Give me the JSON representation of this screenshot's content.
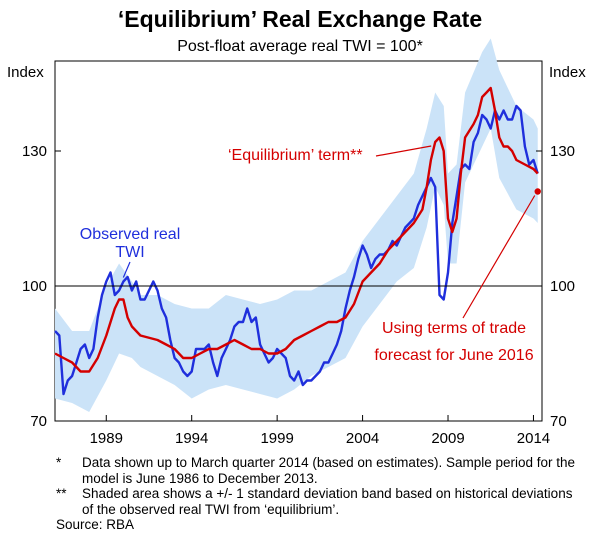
{
  "chart_data": {
    "type": "line",
    "title": "‘Equilibrium’ Real Exchange Rate",
    "subtitle": "Post-float average real TWI = 100*",
    "ylabel_left": "Index",
    "ylabel_right": "Index",
    "ylim": [
      70,
      150
    ],
    "yticks": [
      70,
      100,
      130
    ],
    "xlim": [
      1986.0,
      2014.5
    ],
    "xticks": [
      1989,
      1994,
      1999,
      2004,
      2009,
      2014
    ],
    "series": [
      {
        "name": "Observed real TWI",
        "color": "#1f2fdc",
        "points": [
          [
            1986.0,
            90
          ],
          [
            1986.25,
            89
          ],
          [
            1986.5,
            76
          ],
          [
            1986.75,
            79
          ],
          [
            1987.0,
            80
          ],
          [
            1987.25,
            83
          ],
          [
            1987.5,
            86
          ],
          [
            1987.75,
            87
          ],
          [
            1988.0,
            84
          ],
          [
            1988.25,
            86
          ],
          [
            1988.5,
            93
          ],
          [
            1988.75,
            98
          ],
          [
            1989.0,
            101
          ],
          [
            1989.25,
            103
          ],
          [
            1989.5,
            98
          ],
          [
            1989.75,
            99
          ],
          [
            1990.0,
            101
          ],
          [
            1990.25,
            102
          ],
          [
            1990.5,
            99
          ],
          [
            1990.75,
            101
          ],
          [
            1991.0,
            97
          ],
          [
            1991.25,
            97
          ],
          [
            1991.5,
            99
          ],
          [
            1991.75,
            101
          ],
          [
            1992.0,
            99
          ],
          [
            1992.25,
            95
          ],
          [
            1992.5,
            93
          ],
          [
            1992.75,
            88
          ],
          [
            1993.0,
            84
          ],
          [
            1993.25,
            83
          ],
          [
            1993.5,
            81
          ],
          [
            1993.75,
            80
          ],
          [
            1994.0,
            81
          ],
          [
            1994.25,
            86
          ],
          [
            1994.5,
            86
          ],
          [
            1994.75,
            86
          ],
          [
            1995.0,
            87
          ],
          [
            1995.25,
            83
          ],
          [
            1995.5,
            80
          ],
          [
            1995.75,
            84
          ],
          [
            1996.0,
            86
          ],
          [
            1996.25,
            88
          ],
          [
            1996.5,
            91
          ],
          [
            1996.75,
            92
          ],
          [
            1997.0,
            92
          ],
          [
            1997.25,
            95
          ],
          [
            1997.5,
            92
          ],
          [
            1997.75,
            93
          ],
          [
            1998.0,
            87
          ],
          [
            1998.25,
            85
          ],
          [
            1998.5,
            83
          ],
          [
            1998.75,
            84
          ],
          [
            1999.0,
            86
          ],
          [
            1999.25,
            85
          ],
          [
            1999.5,
            84
          ],
          [
            1999.75,
            80
          ],
          [
            2000.0,
            79
          ],
          [
            2000.25,
            81
          ],
          [
            2000.5,
            78
          ],
          [
            2000.75,
            79
          ],
          [
            2001.0,
            79
          ],
          [
            2001.25,
            80
          ],
          [
            2001.5,
            81
          ],
          [
            2001.75,
            83
          ],
          [
            2002.0,
            83
          ],
          [
            2002.25,
            85
          ],
          [
            2002.5,
            87
          ],
          [
            2002.75,
            90
          ],
          [
            2003.0,
            95
          ],
          [
            2003.25,
            99
          ],
          [
            2003.5,
            102
          ],
          [
            2003.75,
            106
          ],
          [
            2004.0,
            109
          ],
          [
            2004.25,
            107
          ],
          [
            2004.5,
            104
          ],
          [
            2004.75,
            106
          ],
          [
            2005.0,
            107
          ],
          [
            2005.25,
            107
          ],
          [
            2005.5,
            108
          ],
          [
            2005.75,
            110
          ],
          [
            2006.0,
            109
          ],
          [
            2006.25,
            111
          ],
          [
            2006.5,
            113
          ],
          [
            2006.75,
            114
          ],
          [
            2007.0,
            115
          ],
          [
            2007.25,
            118
          ],
          [
            2007.5,
            120
          ],
          [
            2007.75,
            122
          ],
          [
            2008.0,
            124
          ],
          [
            2008.25,
            122
          ],
          [
            2008.5,
            98
          ],
          [
            2008.75,
            97
          ],
          [
            2009.0,
            103
          ],
          [
            2009.25,
            114
          ],
          [
            2009.5,
            120
          ],
          [
            2009.75,
            126
          ],
          [
            2010.0,
            127
          ],
          [
            2010.25,
            126
          ],
          [
            2010.5,
            132
          ],
          [
            2010.75,
            134
          ],
          [
            2011.0,
            138
          ],
          [
            2011.25,
            137
          ],
          [
            2011.5,
            135
          ],
          [
            2011.75,
            139
          ],
          [
            2012.0,
            137
          ],
          [
            2012.25,
            139
          ],
          [
            2012.5,
            137
          ],
          [
            2012.75,
            137
          ],
          [
            2013.0,
            140
          ],
          [
            2013.25,
            139
          ],
          [
            2013.5,
            131
          ],
          [
            2013.75,
            127
          ],
          [
            2014.0,
            128
          ],
          [
            2014.25,
            125
          ]
        ]
      },
      {
        "name": "‘Equilibrium’ term",
        "color": "#d40000",
        "points": [
          [
            1986.0,
            85
          ],
          [
            1986.5,
            84
          ],
          [
            1987.0,
            83
          ],
          [
            1987.5,
            81
          ],
          [
            1988.0,
            81
          ],
          [
            1988.5,
            84
          ],
          [
            1989.0,
            89
          ],
          [
            1989.5,
            95
          ],
          [
            1989.75,
            97
          ],
          [
            1990.0,
            97
          ],
          [
            1990.25,
            93
          ],
          [
            1990.5,
            91
          ],
          [
            1991.0,
            89
          ],
          [
            1992.0,
            88
          ],
          [
            1992.5,
            87
          ],
          [
            1993.0,
            86
          ],
          [
            1993.5,
            84
          ],
          [
            1994.0,
            84
          ],
          [
            1994.5,
            85
          ],
          [
            1995.0,
            86
          ],
          [
            1995.5,
            86
          ],
          [
            1996.0,
            87
          ],
          [
            1996.5,
            88
          ],
          [
            1997.0,
            87
          ],
          [
            1997.5,
            86
          ],
          [
            1998.0,
            86
          ],
          [
            1998.5,
            85
          ],
          [
            1999.0,
            85
          ],
          [
            1999.5,
            86
          ],
          [
            2000.0,
            88
          ],
          [
            2000.5,
            89
          ],
          [
            2001.0,
            90
          ],
          [
            2001.5,
            91
          ],
          [
            2002.0,
            92
          ],
          [
            2002.5,
            92
          ],
          [
            2003.0,
            93
          ],
          [
            2003.5,
            96
          ],
          [
            2004.0,
            101
          ],
          [
            2004.5,
            103
          ],
          [
            2005.0,
            105
          ],
          [
            2005.5,
            108
          ],
          [
            2006.0,
            110
          ],
          [
            2006.5,
            112
          ],
          [
            2007.0,
            114
          ],
          [
            2007.5,
            117
          ],
          [
            2007.75,
            122
          ],
          [
            2008.0,
            128
          ],
          [
            2008.25,
            132
          ],
          [
            2008.5,
            133
          ],
          [
            2008.75,
            130
          ],
          [
            2009.0,
            115
          ],
          [
            2009.25,
            112
          ],
          [
            2009.5,
            115
          ],
          [
            2009.75,
            125
          ],
          [
            2010.0,
            133
          ],
          [
            2010.5,
            136
          ],
          [
            2010.75,
            138
          ],
          [
            2011.0,
            142
          ],
          [
            2011.25,
            143
          ],
          [
            2011.5,
            144
          ],
          [
            2011.75,
            139
          ],
          [
            2012.0,
            133
          ],
          [
            2012.25,
            131
          ],
          [
            2012.5,
            131
          ],
          [
            2012.75,
            130
          ],
          [
            2013.0,
            128
          ],
          [
            2013.5,
            127
          ],
          [
            2014.0,
            126
          ],
          [
            2014.25,
            125
          ]
        ]
      },
      {
        "name": "Shaded band",
        "color": "#cbe3f8",
        "band": [
          [
            1986.0,
            95,
            75
          ],
          [
            1987.0,
            90,
            74
          ],
          [
            1988.0,
            90,
            72
          ],
          [
            1989.0,
            100,
            79
          ],
          [
            1989.75,
            105,
            85
          ],
          [
            1990.5,
            101,
            84
          ],
          [
            1991.0,
            98,
            82
          ],
          [
            1992.0,
            98,
            80
          ],
          [
            1993.0,
            96,
            78
          ],
          [
            1994.0,
            95,
            75
          ],
          [
            1995.0,
            95,
            77
          ],
          [
            1996.0,
            98,
            78
          ],
          [
            1997.0,
            97,
            77
          ],
          [
            1998.0,
            96,
            76
          ],
          [
            1999.0,
            97,
            75
          ],
          [
            2000.0,
            99,
            77
          ],
          [
            2001.0,
            99,
            80
          ],
          [
            2002.0,
            101,
            82
          ],
          [
            2003.0,
            103,
            84
          ],
          [
            2004.0,
            110,
            91
          ],
          [
            2005.0,
            115,
            96
          ],
          [
            2006.0,
            120,
            101
          ],
          [
            2007.0,
            125,
            104
          ],
          [
            2007.75,
            135,
            113
          ],
          [
            2008.25,
            143,
            122
          ],
          [
            2008.75,
            140,
            118
          ],
          [
            2009.0,
            125,
            105
          ],
          [
            2009.5,
            127,
            105
          ],
          [
            2010.0,
            143,
            123
          ],
          [
            2011.0,
            152,
            131
          ],
          [
            2011.5,
            155,
            135
          ],
          [
            2012.0,
            148,
            124
          ],
          [
            2013.0,
            140,
            117
          ],
          [
            2014.0,
            137,
            115
          ],
          [
            2014.25,
            135,
            114
          ]
        ]
      },
      {
        "name": "Using terms of trade forecast for June 2016",
        "color": "#d40000",
        "point": [
          2014.25,
          121
        ]
      }
    ],
    "annotations": {
      "observed_line1": "Observed real",
      "observed_line2": "TWI",
      "equilibrium": "‘Equilibrium’ term**",
      "forecast_line1": "Using terms of trade",
      "forecast_line2": "forecast for June 2016"
    }
  },
  "notes": [
    {
      "mark": "*",
      "text": "Data shown up to March quarter 2014 (based on estimates). Sample period for the model is June 1986 to December 2013."
    },
    {
      "mark": "**",
      "text": "Shaded area shows a +/- 1 standard deviation band based on historical deviations of the observed real TWI from ‘equilibrium’."
    }
  ],
  "source": "Source: RBA"
}
